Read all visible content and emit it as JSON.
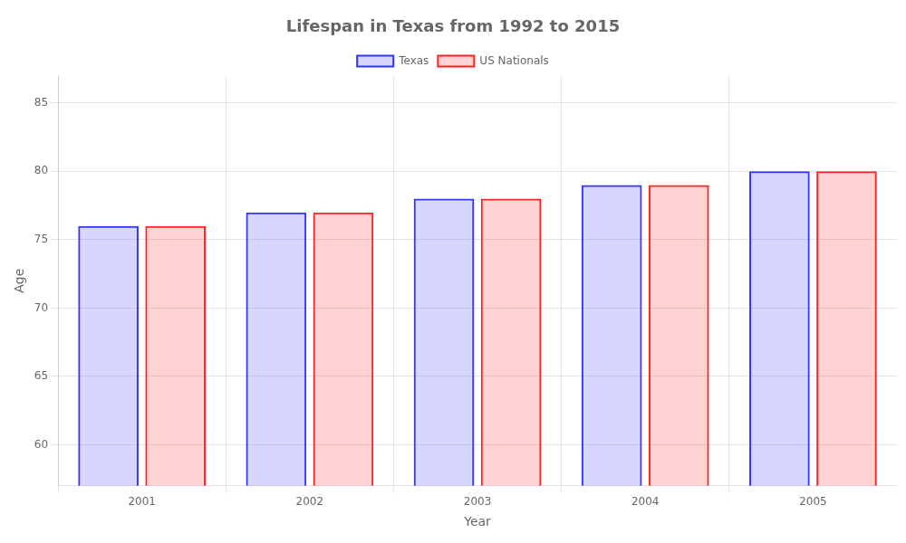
{
  "chart_data": {
    "type": "bar",
    "title": "Lifespan in Texas from 1992 to 2015",
    "xlabel": "Year",
    "ylabel": "Age",
    "categories": [
      "2001",
      "2002",
      "2003",
      "2004",
      "2005"
    ],
    "series": [
      {
        "name": "Texas",
        "color": "#3333ff",
        "values": [
          76,
          77,
          78,
          79,
          80
        ]
      },
      {
        "name": "US Nationals",
        "color": "#ff2222",
        "values": [
          76,
          77,
          78,
          79,
          80
        ]
      }
    ],
    "ylim": [
      57,
      87
    ],
    "yticks": [
      60,
      65,
      70,
      75,
      80,
      85
    ],
    "grid": true,
    "legend": "top"
  }
}
